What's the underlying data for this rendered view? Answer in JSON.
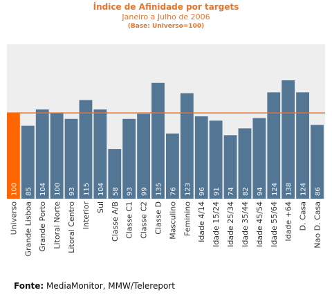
{
  "header": {
    "title": "Índice de Afinidade por targets",
    "subtitle": "Janeiro a Julho de 2006",
    "note": "(Base: Universo=100)"
  },
  "footer": {
    "source_label": "Fonte:",
    "source_text": "MediaMonitor, MMW/Telereport"
  },
  "colors": {
    "bar": "#527694",
    "highlight_bar": "#ff6600",
    "reference_line": "#e8732a",
    "plot_background": "#eeeeee",
    "title": "#e8732a"
  },
  "chart_data": {
    "type": "bar",
    "title": "Índice de Afinidade por targets",
    "subtitle": "Janeiro a Julho de 2006",
    "xlabel": "",
    "ylabel": "",
    "ylim": [
      0,
      180
    ],
    "grid": false,
    "reference_line": 100,
    "highlight_category": "Universo",
    "categories": [
      "Universo",
      "Grande Lisboa",
      "Grande Porto",
      "Litoral Norte",
      "Litoral Centro",
      "Interior",
      "Sul",
      "Classe A/B",
      "Classe C1",
      "Classe C2",
      "Classe D",
      "Masculino",
      "Feminino",
      "Idade 4/14",
      "Idade 15/24",
      "Idade 25/34",
      "Idade 35/44",
      "Idade 45/54",
      "Idade 55/64",
      "Idade +64",
      "D. Casa",
      "Nao D. Casa"
    ],
    "values": [
      100,
      85,
      104,
      100,
      93,
      115,
      104,
      58,
      93,
      99,
      135,
      76,
      123,
      96,
      91,
      74,
      82,
      94,
      124,
      138,
      124,
      86
    ]
  }
}
